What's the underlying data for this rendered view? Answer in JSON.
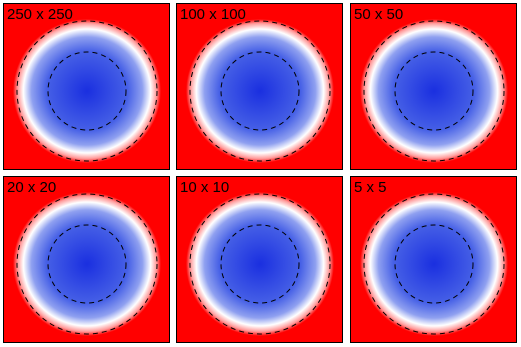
{
  "panels": [
    {
      "label": "250 x 250"
    },
    {
      "label": "100 x 100"
    },
    {
      "label": "50 x 50"
    },
    {
      "label": "20 x 20"
    },
    {
      "label": "10 x 10"
    },
    {
      "label": "5 x 5"
    }
  ]
}
